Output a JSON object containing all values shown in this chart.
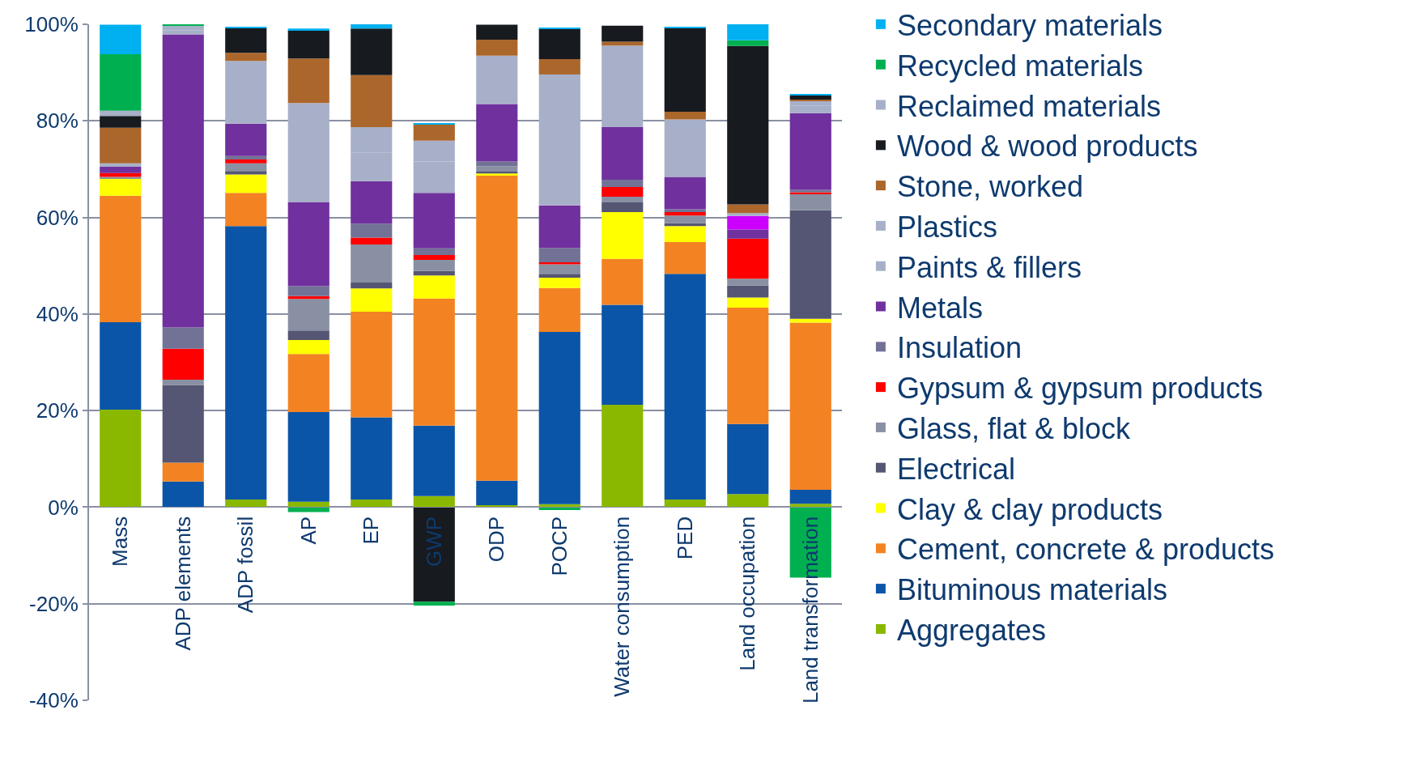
{
  "chart_data": {
    "type": "bar",
    "stacked": true,
    "categories": [
      "Mass",
      "ADP elements",
      "ADP fossil",
      "AP",
      "EP",
      "GWP",
      "ODP",
      "POCP",
      "Water consumption",
      "PED",
      "Land occupation",
      "Land transformation"
    ],
    "series": [
      {
        "name": "Aggregates",
        "color": "#8ab800",
        "values": [
          20.2,
          null,
          1.6,
          1.1,
          1.6,
          2.3,
          0.4,
          0.6,
          21.2,
          1.6,
          2.7,
          0.7
        ]
      },
      {
        "name": "Bituminous materials",
        "color": "#0b55a8",
        "values": [
          18.1,
          5.3,
          56.6,
          18.6,
          17.0,
          14.6,
          5.1,
          35.7,
          20.7,
          46.7,
          14.5,
          2.9
        ]
      },
      {
        "name": "Cement, concrete & products",
        "color": "#f38322",
        "values": [
          26.2,
          3.9,
          6.9,
          12.0,
          21.9,
          26.3,
          63.3,
          9.1,
          9.5,
          6.6,
          24.1,
          34.6
        ]
      },
      {
        "name": "Clay & clay products",
        "color": "#ffff00",
        "values": [
          3.6,
          null,
          3.8,
          2.9,
          4.8,
          4.8,
          0.3,
          2.1,
          9.7,
          3.3,
          2.1,
          0.8
        ]
      },
      {
        "name": "Electrical",
        "color": "#545673",
        "values": [
          null,
          16.1,
          0.7,
          2.0,
          1.2,
          0.9,
          0.4,
          0.8,
          2.0,
          0.6,
          2.5,
          22.5
        ]
      },
      {
        "name": "Glass, flat & block",
        "color": "#8a90a3",
        "values": [
          0.3,
          1.1,
          1.6,
          6.5,
          7.9,
          2.3,
          1.1,
          2.0,
          1.2,
          1.6,
          1.4,
          3.4
        ]
      },
      {
        "name": "Gypsum & gypsum products",
        "color": "#ff0000",
        "values": [
          0.8,
          6.4,
          0.8,
          0.6,
          1.4,
          1.0,
          null,
          0.4,
          2.0,
          0.7,
          8.3,
          0.3
        ]
      },
      {
        "name": "Insulation",
        "color": "#727296",
        "values": [
          null,
          4.4,
          0.7,
          2.1,
          2.9,
          1.4,
          1.0,
          3.0,
          1.5,
          0.6,
          null,
          0.5
        ]
      },
      {
        "name": "Metals",
        "color": "#70309e",
        "values": [
          1.3,
          60.7,
          6.7,
          17.4,
          8.8,
          11.5,
          11.9,
          8.8,
          10.9,
          6.7,
          1.9,
          15.9
        ]
      },
      {
        "color": "#cc00ff",
        "values": [
          null,
          null,
          null,
          null,
          null,
          null,
          null,
          null,
          null,
          null,
          2.8,
          null
        ]
      },
      {
        "name": "Paints & fillers",
        "color": "#a7b0c8",
        "values": [
          0.4,
          0.9,
          7.7,
          20.5,
          5.9,
          6.5,
          10.0,
          22.4,
          9.9,
          6.8,
          null,
          1.6
        ]
      },
      {
        "name": "Plastics",
        "color": "#a7b0c8",
        "values": [
          0.3,
          0.9,
          5.3,
          null,
          5.3,
          4.3,
          null,
          4.7,
          7.0,
          5.1,
          0.6,
          1.0
        ]
      },
      {
        "name": "Stone, worked",
        "color": "#ab662b",
        "values": [
          7.4,
          null,
          1.7,
          9.2,
          10.8,
          3.4,
          3.3,
          3.2,
          0.8,
          1.6,
          1.8,
          0.2
        ]
      },
      {
        "name": "Wood & wood products",
        "color": "#171a1f",
        "values": [
          2.4,
          null,
          5.1,
          5.9,
          9.6,
          -19.6,
          3.1,
          6.3,
          3.3,
          17.4,
          32.8,
          0.9
        ]
      },
      {
        "name": "Reclaimed materials",
        "color": "#a7b0c8",
        "values": [
          1.1,
          null,
          null,
          null,
          null,
          null,
          null,
          null,
          null,
          null,
          null,
          null
        ]
      },
      {
        "name": "Recycled materials",
        "color": "#00b050",
        "values": [
          11.7,
          0.2,
          null,
          -1.0,
          null,
          -0.8,
          null,
          -0.6,
          null,
          null,
          1.2,
          -14.6
        ]
      },
      {
        "name": "Secondary materials",
        "color": "#00b0f0",
        "values": [
          6.1,
          null,
          0.2,
          0.3,
          0.9,
          0.2,
          null,
          0.2,
          null,
          0.2,
          3.4,
          0.2
        ]
      }
    ],
    "ylim": [
      -40,
      100
    ],
    "yticks": [
      {
        "value": -40,
        "label": "-40%"
      },
      {
        "value": -20,
        "label": "-20%"
      },
      {
        "value": 0,
        "label": "0%"
      },
      {
        "value": 20,
        "label": "20%"
      },
      {
        "value": 40,
        "label": "40%"
      },
      {
        "value": 60,
        "label": "60%"
      },
      {
        "value": 80,
        "label": "80%"
      },
      {
        "value": 100,
        "label": "100%"
      }
    ],
    "grid": "y",
    "legend": "right"
  }
}
